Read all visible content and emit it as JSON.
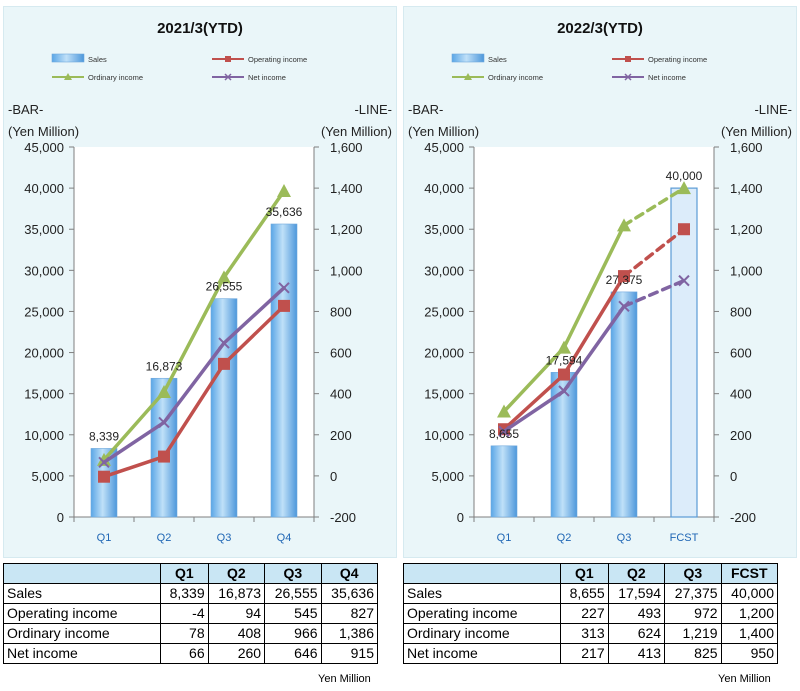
{
  "chart_data": [
    {
      "type": "bar+line",
      "title": "2021/3(YTD)",
      "categories": [
        "Q1",
        "Q2",
        "Q3",
        "Q4"
      ],
      "left_axis": {
        "label_top": "-BAR-",
        "label_unit": "(Yen Million)",
        "range": [
          0,
          45000
        ],
        "ticks": [
          "45,000",
          "40,000",
          "35,000",
          "30,000",
          "25,000",
          "20,000",
          "15,000",
          "10,000",
          "5,000",
          "0"
        ]
      },
      "right_axis": {
        "label_top": "-LINE-",
        "label_unit": "(Yen Million)",
        "range": [
          -200,
          1600
        ],
        "ticks": [
          "1,600",
          "1,400",
          "1,200",
          "1,000",
          "800",
          "600",
          "400",
          "200",
          "0",
          "-200"
        ]
      },
      "bars": {
        "name": "Sales",
        "values": [
          8339,
          16873,
          26555,
          35636
        ],
        "labels": [
          "8,339",
          "16,873",
          "26,555",
          "35,636"
        ],
        "forecast_index": -1
      },
      "lines": [
        {
          "name": "Operating income",
          "values": [
            -4,
            94,
            545,
            827
          ],
          "color": "#c0504d",
          "marker": "square"
        },
        {
          "name": "Ordinary income",
          "values": [
            78,
            408,
            966,
            1386
          ],
          "color": "#9bbb59",
          "marker": "triangle"
        },
        {
          "name": "Net income",
          "values": [
            66,
            260,
            646,
            915
          ],
          "color": "#8064a2",
          "marker": "x"
        }
      ],
      "legend": [
        "Sales",
        "Operating income",
        "Ordinary income",
        "Net income"
      ]
    },
    {
      "type": "bar+line",
      "title": "2022/3(YTD)",
      "categories": [
        "Q1",
        "Q2",
        "Q3",
        "FCST"
      ],
      "left_axis": {
        "label_top": "-BAR-",
        "label_unit": "(Yen Million)",
        "range": [
          0,
          45000
        ],
        "ticks": [
          "45,000",
          "40,000",
          "35,000",
          "30,000",
          "25,000",
          "20,000",
          "15,000",
          "10,000",
          "5,000",
          "0"
        ]
      },
      "right_axis": {
        "label_top": "-LINE-",
        "label_unit": "(Yen Million)",
        "range": [
          -200,
          1600
        ],
        "ticks": [
          "1,600",
          "1,400",
          "1,200",
          "1,000",
          "800",
          "600",
          "400",
          "200",
          "0",
          "-200"
        ]
      },
      "bars": {
        "name": "Sales",
        "values": [
          8655,
          17594,
          27375,
          40000
        ],
        "labels": [
          "8,655",
          "17,594",
          "27,375",
          "40,000"
        ],
        "forecast_index": 3
      },
      "lines": [
        {
          "name": "Operating income",
          "values": [
            227,
            493,
            972,
            1200
          ],
          "color": "#c0504d",
          "marker": "square"
        },
        {
          "name": "Ordinary income",
          "values": [
            313,
            624,
            1219,
            1400
          ],
          "color": "#9bbb59",
          "marker": "triangle"
        },
        {
          "name": "Net income",
          "values": [
            217,
            413,
            825,
            950
          ],
          "color": "#8064a2",
          "marker": "x"
        }
      ],
      "legend": [
        "Sales",
        "Operating income",
        "Ordinary income",
        "Net income"
      ]
    }
  ],
  "tables": {
    "left": {
      "headers": [
        "Q1",
        "Q2",
        "Q3",
        "Q4"
      ],
      "rows": [
        {
          "label": "Sales",
          "values": [
            "8,339",
            "16,873",
            "26,555",
            "35,636"
          ]
        },
        {
          "label": "Operating income",
          "values": [
            "-4",
            "94",
            "545",
            "827"
          ]
        },
        {
          "label": "Ordinary income",
          "values": [
            "78",
            "408",
            "966",
            "1,386"
          ]
        },
        {
          "label": "Net income",
          "values": [
            "66",
            "260",
            "646",
            "915"
          ]
        }
      ],
      "unit": "Yen Million"
    },
    "right": {
      "headers": [
        "Q1",
        "Q2",
        "Q3",
        "FCST"
      ],
      "rows": [
        {
          "label": "Sales",
          "values": [
            "8,655",
            "17,594",
            "27,375",
            "40,000"
          ]
        },
        {
          "label": "Operating income",
          "values": [
            "227",
            "493",
            "972",
            "1,200"
          ]
        },
        {
          "label": "Ordinary income",
          "values": [
            "313",
            "624",
            "1,219",
            "1,400"
          ]
        },
        {
          "label": "Net income",
          "values": [
            "217",
            "413",
            "825",
            "950"
          ]
        }
      ],
      "unit": "Yen Million"
    }
  }
}
